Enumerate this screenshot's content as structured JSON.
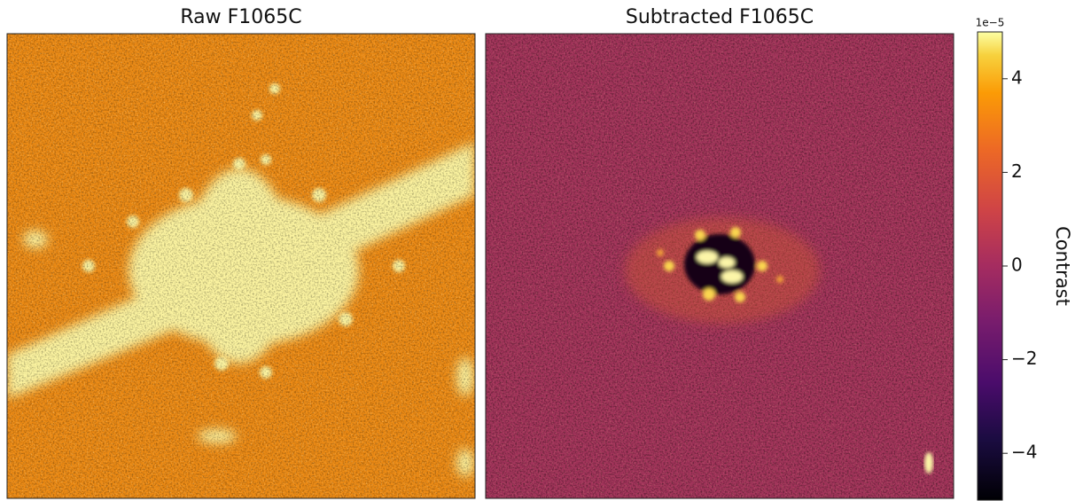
{
  "panels": [
    {
      "title": "Raw F1065C"
    },
    {
      "title": "Subtracted F1065C"
    }
  ],
  "colorbar": {
    "label": "Contrast",
    "offset_label": "1e−5",
    "lim": [
      -5,
      5
    ],
    "ticks": [
      {
        "value": -4,
        "label": "−4"
      },
      {
        "value": -2,
        "label": "−2"
      },
      0,
      2,
      4
    ]
  }
}
